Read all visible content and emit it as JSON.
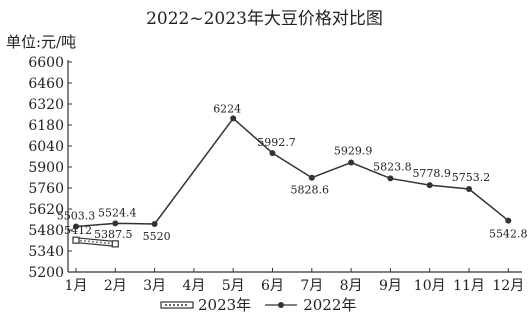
{
  "chart_data": {
    "type": "line",
    "title": "2022~2023年大豆价格对比图",
    "ylabel": "单位:元/吨",
    "xlabel": "",
    "categories": [
      "1月",
      "2月",
      "3月",
      "4月",
      "5月",
      "6月",
      "7月",
      "8月",
      "9月",
      "10月",
      "11月",
      "12月"
    ],
    "ylim": [
      5200,
      6600
    ],
    "yticks": [
      5200,
      5340,
      5480,
      5620,
      5760,
      5900,
      6040,
      6180,
      6320,
      6460,
      6600
    ],
    "grid": false,
    "legend_position": "bottom",
    "series": [
      {
        "name": "2023年",
        "marker": "hollow-square",
        "values": [
          5412,
          5387.5,
          null,
          null,
          null,
          null,
          null,
          null,
          null,
          null,
          null,
          null
        ],
        "labels": [
          "5412",
          "5387.5",
          "",
          "",
          "",
          "",
          "",
          "",
          "",
          "",
          "",
          ""
        ]
      },
      {
        "name": "2022年",
        "marker": "filled-circle",
        "values": [
          5503.3,
          5524.4,
          5520,
          null,
          6224,
          5992.7,
          5828.6,
          5929.9,
          5823.8,
          5778.9,
          5753.2,
          5542.8
        ],
        "labels": [
          "5503.3",
          "5524.4",
          "5520",
          "",
          "6224",
          "5992.7",
          "5828.6",
          "5929.9",
          "5823.8",
          "5778.9",
          "5753.2",
          "5542.8"
        ]
      }
    ]
  }
}
